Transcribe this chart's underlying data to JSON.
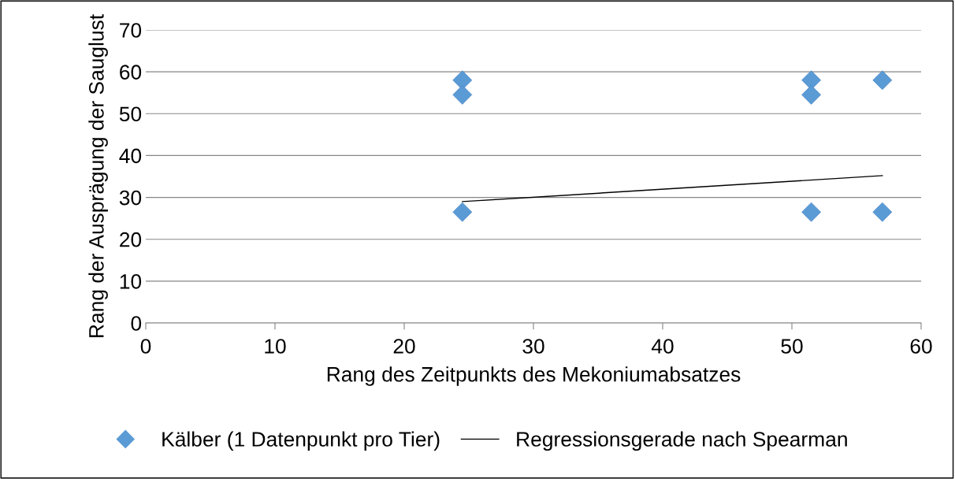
{
  "chart_data": {
    "type": "scatter",
    "xlabel": "Rang des Zeitpunkts des Mekoniumabsatzes",
    "ylabel": "Rang der Ausprägung der Sauglust",
    "series": [
      {
        "name": "Kälber (1 Datenpunkt pro Tier)",
        "color": "#5b9bd5",
        "marker": "diamond",
        "x": [
          24.5,
          24.5,
          24.5,
          51.5,
          51.5,
          51.5,
          57,
          57
        ],
        "values": [
          58,
          54.5,
          26.5,
          58,
          54.5,
          26.5,
          58,
          26.5
        ]
      },
      {
        "name": "Regressionsgerade nach Spearman",
        "type": "line",
        "color": "#000000",
        "marker": "none",
        "x": [
          24.5,
          57
        ],
        "values": [
          29,
          35.2
        ]
      }
    ],
    "xlim": [
      0,
      60
    ],
    "xticks": [
      0,
      10,
      20,
      30,
      40,
      50,
      60
    ],
    "ylim": [
      0,
      70
    ],
    "yticks": [
      0,
      10,
      20,
      30,
      40,
      50,
      60,
      70
    ],
    "grid": "y",
    "legend": "bottom"
  }
}
